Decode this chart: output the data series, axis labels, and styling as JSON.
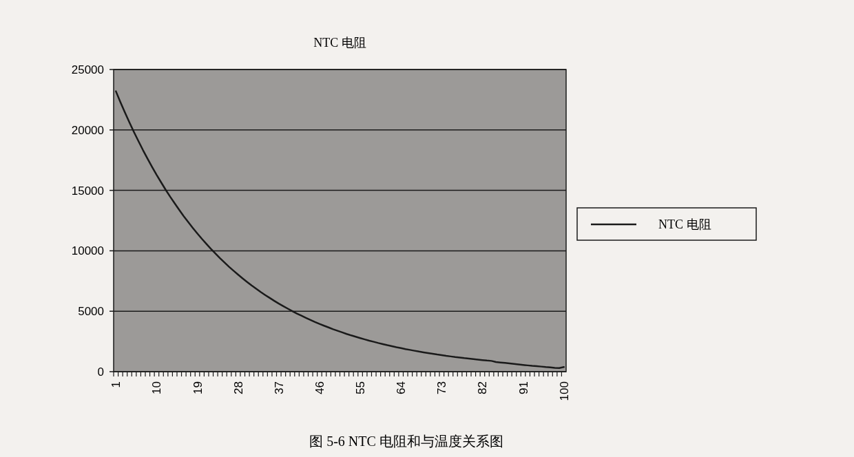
{
  "chart_data": {
    "type": "line",
    "title": "NTC 电阻",
    "annotations": [
      "图 5-6  NTC 电阻和与温度关系图"
    ],
    "categories": [
      "1",
      null,
      null,
      null,
      null,
      null,
      null,
      null,
      null,
      "10",
      null,
      null,
      null,
      null,
      null,
      null,
      null,
      null,
      "19",
      null,
      null,
      null,
      null,
      null,
      null,
      null,
      null,
      "28",
      null,
      null,
      null,
      null,
      null,
      null,
      null,
      null,
      "37",
      null,
      null,
      null,
      null,
      null,
      null,
      null,
      null,
      "46",
      null,
      null,
      null,
      null,
      null,
      null,
      null,
      null,
      "55",
      null,
      null,
      null,
      null,
      null,
      null,
      null,
      null,
      "64",
      null,
      null,
      null,
      null,
      null,
      null,
      null,
      null,
      "73",
      null,
      null,
      null,
      null,
      null,
      null,
      null,
      null,
      "82",
      null,
      null,
      null,
      null,
      null,
      null,
      null,
      null,
      "91",
      null,
      null,
      null,
      null,
      null,
      null,
      null,
      null,
      "100"
    ],
    "series": [
      {
        "name": "NTC 电阻",
        "color": "#1a1a1a",
        "values": [
          23200,
          22300,
          21440,
          20620,
          19820,
          19060,
          18320,
          17620,
          16940,
          16280,
          15660,
          15050,
          14470,
          13920,
          13380,
          12860,
          12370,
          11890,
          11430,
          10990,
          10570,
          10160,
          9770,
          9390,
          9030,
          8680,
          8350,
          8030,
          7720,
          7420,
          7130,
          6860,
          6590,
          6340,
          6100,
          5860,
          5630,
          5420,
          5210,
          5010,
          4810,
          4630,
          4450,
          4280,
          4110,
          3950,
          3800,
          3660,
          3510,
          3380,
          3250,
          3120,
          3000,
          2890,
          2780,
          2670,
          2560,
          2470,
          2370,
          2280,
          2190,
          2110,
          2020,
          1950,
          1870,
          1800,
          1730,
          1660,
          1600,
          1540,
          1480,
          1420,
          1370,
          1310,
          1260,
          1210,
          1170,
          1120,
          1080,
          1040,
          1000,
          960,
          920,
          890,
          800,
          760,
          720,
          680,
          640,
          600,
          560,
          520,
          480,
          450,
          420,
          380,
          350,
          320,
          300,
          380
        ]
      }
    ],
    "ylim": [
      0,
      25000
    ],
    "yticks": [
      0,
      5000,
      10000,
      15000,
      20000,
      25000
    ],
    "grid": "y",
    "legend": "right"
  }
}
